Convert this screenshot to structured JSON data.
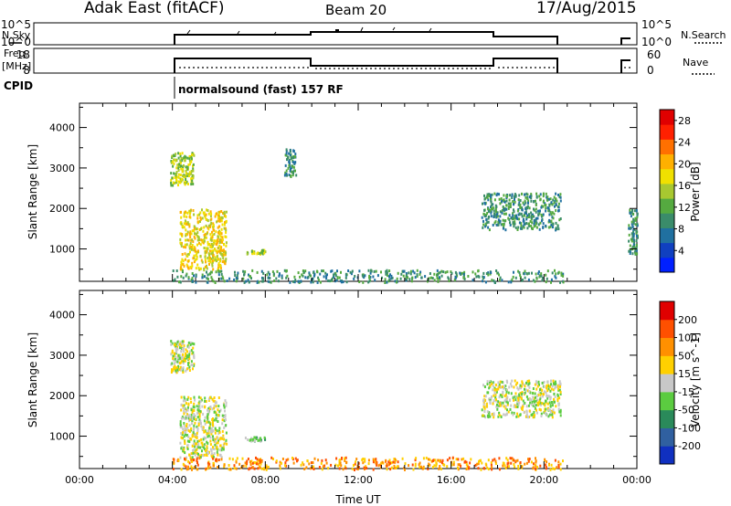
{
  "header": {
    "radar_label": "Adak East (fitACF)",
    "beam_label": "Beam 20",
    "date_label": "17/Aug/2015"
  },
  "status_panels": {
    "nsky": {
      "label": "N.Sky",
      "ticks": [
        "10^5",
        "10^0"
      ],
      "right_label": "N.Search",
      "right_ticks": [
        "10^5",
        "10^0"
      ]
    },
    "freq": {
      "label_top": "Freq.",
      "label_bottom": "[MHz]",
      "ticks": [
        "18",
        "8"
      ],
      "right_label": "Nave",
      "right_ticks": [
        "60",
        "0"
      ]
    },
    "cpid": {
      "label": "CPID",
      "mode_text": "normalsound (fast) 157 RF"
    }
  },
  "chart_data": [
    {
      "type": "heatmap",
      "name": "power",
      "x_range_hours": [
        0,
        24
      ],
      "x_ticks": [
        "00:00",
        "04:00",
        "08:00",
        "12:00",
        "16:00",
        "20:00",
        "00:00"
      ],
      "ylabel": "Slant Range [km]",
      "y_ticks": [
        1000,
        2000,
        3000,
        4000
      ],
      "ylim": [
        200,
        4600
      ],
      "colorbar": {
        "label": "Power [dB]",
        "ticks": [
          "4",
          "8",
          "12",
          "16",
          "20",
          "24",
          "28"
        ],
        "range": [
          0,
          30
        ],
        "colors": [
          "#0020ff",
          "#1040c0",
          "#2070a0",
          "#3a8c6a",
          "#55aa40",
          "#a8c830",
          "#f0e000",
          "#ffb000",
          "#ff7000",
          "#ff2000",
          "#e00000"
        ]
      },
      "echo_regions": [
        {
          "t": [
            3.9,
            4.9
          ],
          "r": [
            2600,
            3400
          ],
          "value": 15
        },
        {
          "t": [
            4.3,
            6.3
          ],
          "r": [
            500,
            2000
          ],
          "value": 18
        },
        {
          "t": [
            7.1,
            8.0
          ],
          "r": [
            900,
            1000
          ],
          "value": 16
        },
        {
          "t": [
            8.8,
            9.3
          ],
          "r": [
            2800,
            3500
          ],
          "value": 10
        },
        {
          "t": [
            17.3,
            20.7
          ],
          "r": [
            1500,
            2400
          ],
          "value": 8
        },
        {
          "t": [
            23.6,
            24.0
          ],
          "r": [
            900,
            2000
          ],
          "value": 8
        },
        {
          "t": [
            4.0,
            20.8
          ],
          "r": [
            200,
            500
          ],
          "value": 10
        }
      ]
    },
    {
      "type": "heatmap",
      "name": "velocity",
      "x_range_hours": [
        0,
        24
      ],
      "x_ticks": [
        "00:00",
        "04:00",
        "08:00",
        "12:00",
        "16:00",
        "20:00",
        "00:00"
      ],
      "xlabel": "Time UT",
      "ylabel": "Slant Range [km]",
      "y_ticks": [
        1000,
        2000,
        3000,
        4000
      ],
      "ylim": [
        200,
        4600
      ],
      "colorbar": {
        "label": "Velocity [m s^-1]",
        "ticks": [
          "200",
          "100",
          "50",
          "15",
          "-15",
          "-50",
          "-100",
          "-200"
        ],
        "colors": [
          "#1030c0",
          "#3060a0",
          "#2a8a5a",
          "#5bcc40",
          "#c8c8c8",
          "#ffd000",
          "#ff9000",
          "#ff5000",
          "#e00000"
        ]
      },
      "echo_regions": [
        {
          "t": [
            3.9,
            4.9
          ],
          "r": [
            2600,
            3400
          ],
          "value": 0
        },
        {
          "t": [
            4.3,
            6.3
          ],
          "r": [
            500,
            2000
          ],
          "value": 0
        },
        {
          "t": [
            7.1,
            8.0
          ],
          "r": [
            900,
            1000
          ],
          "value": 20
        },
        {
          "t": [
            17.3,
            20.7
          ],
          "r": [
            1500,
            2400
          ],
          "value": 0
        },
        {
          "t": [
            4.0,
            20.8
          ],
          "r": [
            200,
            500
          ],
          "value": -40
        }
      ]
    }
  ]
}
